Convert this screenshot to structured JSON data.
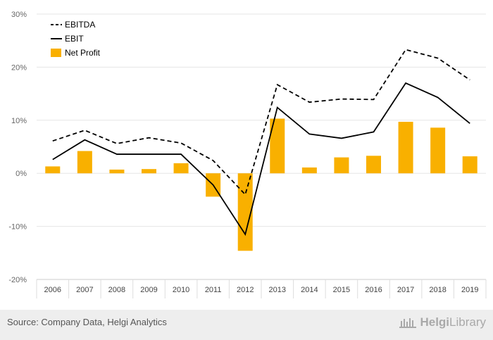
{
  "chart_data": {
    "type": "bar+line",
    "categories": [
      "2006",
      "2007",
      "2008",
      "2009",
      "2010",
      "2011",
      "2012",
      "2013",
      "2014",
      "2015",
      "2016",
      "2017",
      "2018",
      "2019"
    ],
    "series": [
      {
        "name": "EBITDA",
        "kind": "line",
        "style": "dashed",
        "color": "#000000",
        "values": [
          6.1,
          8.1,
          5.6,
          6.7,
          5.7,
          2.4,
          -4.0,
          16.7,
          13.4,
          14.0,
          13.9,
          23.3,
          21.7,
          17.6
        ]
      },
      {
        "name": "EBIT",
        "kind": "line",
        "style": "solid",
        "color": "#000000",
        "values": [
          2.6,
          6.3,
          3.6,
          3.6,
          3.6,
          -2.2,
          -11.5,
          12.4,
          7.4,
          6.6,
          7.8,
          17.0,
          14.3,
          9.4
        ]
      },
      {
        "name": "Net Profit",
        "kind": "bar",
        "color": "#f9b000",
        "values": [
          1.3,
          4.2,
          0.7,
          0.8,
          1.9,
          -4.4,
          -14.6,
          10.3,
          1.1,
          3.0,
          3.3,
          9.7,
          8.6,
          3.2
        ]
      }
    ],
    "ylim": [
      -20,
      30
    ],
    "yticks": [
      -20,
      -10,
      0,
      10,
      20,
      30
    ],
    "ytick_labels": [
      "-20%",
      "-10%",
      "0%",
      "10%",
      "20%",
      "30%"
    ],
    "legend_position": "top-left",
    "grid": true,
    "xlabel": "",
    "ylabel": ""
  },
  "footer": {
    "source": "Source: Company Data, Helgi Analytics",
    "brand": "HelgiLibrary",
    "brand_prefix": "Helgi",
    "brand_suffix": "Library"
  },
  "colors": {
    "bar": "#f9b000",
    "line": "#000000",
    "grid": "#e6e6e6",
    "axis_text": "#666666",
    "footer_bg": "#eeeeee"
  },
  "icons": {
    "brand_logo": "library-building-icon"
  }
}
